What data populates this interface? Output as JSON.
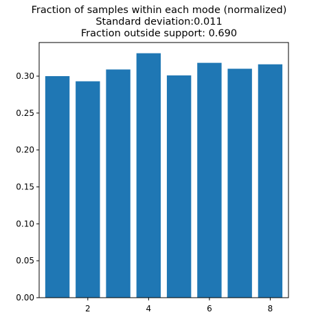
{
  "chart_data": {
    "type": "bar",
    "title": [
      "Fraction of samples within each mode (normalized)",
      "Standard deviation:0.011",
      "Fraction outside support: 0.690"
    ],
    "xlabel": "",
    "ylabel": "",
    "x": [
      1,
      2,
      3,
      4,
      5,
      6,
      7,
      8
    ],
    "values": [
      0.3,
      0.293,
      0.309,
      0.331,
      0.301,
      0.318,
      0.31,
      0.316
    ],
    "xlim": [
      0.4,
      8.6
    ],
    "ylim": [
      0,
      0.3455
    ],
    "xticks": [
      "2",
      "4",
      "6",
      "8"
    ],
    "yticks": [
      "0.00",
      "0.05",
      "0.10",
      "0.15",
      "0.20",
      "0.25",
      "0.30"
    ],
    "grid": false,
    "legend": "none",
    "bar_color": "#1f77b4"
  }
}
